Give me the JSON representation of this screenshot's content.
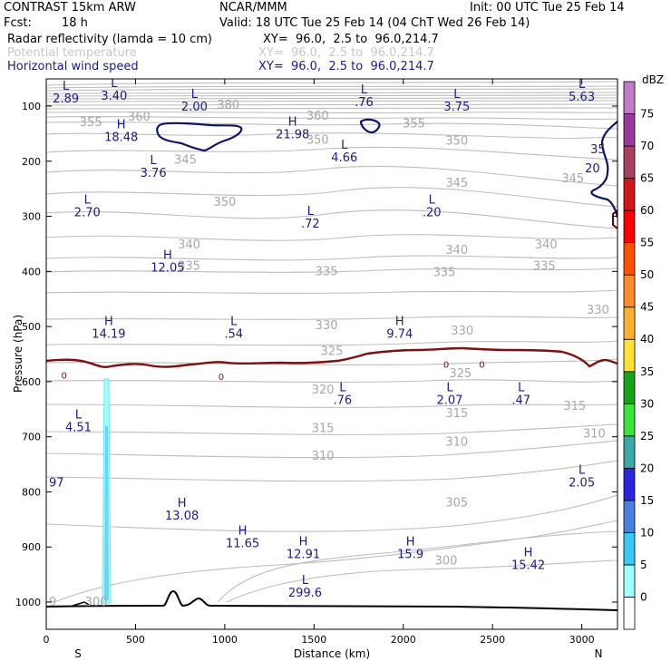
{
  "header": {
    "model": "CONTRAST 15km ARW",
    "org": "NCAR/MMM",
    "init": "Init: 00 UTC Tue 25 Feb 14",
    "fcst_label": "Fcst:",
    "fcst_value": "18 h",
    "valid": "Valid: 18 UTC Tue 25 Feb 14 (04 ChT Wed 26 Feb 14)",
    "fields": [
      {
        "name": "Radar reflectivity (lamda = 10 cm)",
        "xy": "XY=  96.0,  2.5 to  96.0,214.7"
      },
      {
        "name": "Potential temperature",
        "xy": "XY=  96.0,  2.5 to  96.0,214.7"
      },
      {
        "name": "Horizontal wind speed",
        "xy": "XY=  96.0,  2.5 to  96.0,214.7"
      }
    ]
  },
  "chart_data": {
    "type": "contour-cross-section",
    "xlabel": "Distance (km)",
    "ylabel": "Pressure (hPa)",
    "xlim": [
      0,
      3200
    ],
    "ylim": [
      1050,
      70
    ],
    "x_ticks": [
      0,
      500,
      1000,
      1500,
      2000,
      2500,
      3000
    ],
    "y_ticks": [
      100,
      200,
      300,
      400,
      500,
      600,
      700,
      800,
      900,
      1000
    ],
    "x_end_labels": {
      "left": "S",
      "right": "N"
    },
    "theta_labels": [
      {
        "x": 250,
        "p": 130,
        "v": "355"
      },
      {
        "x": 520,
        "p": 120,
        "v": "360"
      },
      {
        "x": 1020,
        "p": 98,
        "v": "380"
      },
      {
        "x": 1520,
        "p": 118,
        "v": "360"
      },
      {
        "x": 2060,
        "p": 132,
        "v": "355"
      },
      {
        "x": 2300,
        "p": 163,
        "v": "350"
      },
      {
        "x": 1520,
        "p": 162,
        "v": "350"
      },
      {
        "x": 780,
        "p": 198,
        "v": "345"
      },
      {
        "x": 2300,
        "p": 240,
        "v": "345"
      },
      {
        "x": 2950,
        "p": 232,
        "v": "345"
      },
      {
        "x": 1000,
        "p": 274,
        "v": "350"
      },
      {
        "x": 800,
        "p": 352,
        "v": "340"
      },
      {
        "x": 2300,
        "p": 362,
        "v": "340"
      },
      {
        "x": 2800,
        "p": 352,
        "v": "340"
      },
      {
        "x": 800,
        "p": 390,
        "v": "335"
      },
      {
        "x": 1570,
        "p": 400,
        "v": "335"
      },
      {
        "x": 2230,
        "p": 402,
        "v": "335"
      },
      {
        "x": 2790,
        "p": 390,
        "v": "335"
      },
      {
        "x": 3090,
        "p": 470,
        "v": "330"
      },
      {
        "x": 1570,
        "p": 498,
        "v": "330"
      },
      {
        "x": 2330,
        "p": 508,
        "v": "330"
      },
      {
        "x": 1600,
        "p": 545,
        "v": "325"
      },
      {
        "x": 2320,
        "p": 585,
        "v": "325"
      },
      {
        "x": 1550,
        "p": 615,
        "v": "320"
      },
      {
        "x": 2960,
        "p": 645,
        "v": "315"
      },
      {
        "x": 2300,
        "p": 658,
        "v": "315"
      },
      {
        "x": 1550,
        "p": 685,
        "v": "315"
      },
      {
        "x": 3070,
        "p": 695,
        "v": "310"
      },
      {
        "x": 2300,
        "p": 710,
        "v": "310"
      },
      {
        "x": 1550,
        "p": 735,
        "v": "310"
      },
      {
        "x": 2300,
        "p": 820,
        "v": "305"
      },
      {
        "x": 2240,
        "p": 925,
        "v": "300"
      },
      {
        "x": 280,
        "p": 1000,
        "v": "300"
      },
      {
        "x": 0,
        "p": 1000,
        "v": "9"
      }
    ],
    "wind_labels": [
      {
        "x": 110,
        "p": 85,
        "type": "L",
        "v": "2.89"
      },
      {
        "x": 380,
        "p": 80,
        "type": "L",
        "v": "3.40"
      },
      {
        "x": 830,
        "p": 100,
        "type": "L",
        "v": "2.00"
      },
      {
        "x": 1780,
        "p": 92,
        "type": "L",
        "v": ".76"
      },
      {
        "x": 2300,
        "p": 100,
        "type": "L",
        "v": "3.75"
      },
      {
        "x": 3000,
        "p": 82,
        "type": "L",
        "v": "5.63"
      },
      {
        "x": 420,
        "p": 155,
        "type": "H",
        "v": "18.48"
      },
      {
        "x": 1380,
        "p": 150,
        "type": "H",
        "v": "21.98"
      },
      {
        "x": 600,
        "p": 220,
        "type": "L",
        "v": "3.76"
      },
      {
        "x": 1670,
        "p": 192,
        "type": "L",
        "v": "4.66"
      },
      {
        "x": 230,
        "p": 292,
        "type": "L",
        "v": "2.70"
      },
      {
        "x": 1480,
        "p": 312,
        "type": "L",
        "v": ".72"
      },
      {
        "x": 2160,
        "p": 292,
        "type": "L",
        "v": ".20"
      },
      {
        "x": 680,
        "p": 392,
        "type": "H",
        "v": "12.05"
      },
      {
        "x": 350,
        "p": 512,
        "type": "H",
        "v": "14.19"
      },
      {
        "x": 1050,
        "p": 512,
        "type": "L",
        "v": ".54"
      },
      {
        "x": 1980,
        "p": 512,
        "type": "H",
        "v": "9.74"
      },
      {
        "x": 1660,
        "p": 632,
        "type": "L",
        "v": ".76"
      },
      {
        "x": 2260,
        "p": 632,
        "type": "L",
        "v": "2.07"
      },
      {
        "x": 2660,
        "p": 632,
        "type": "L",
        "v": ".47"
      },
      {
        "x": 180,
        "p": 682,
        "type": "L",
        "v": "4.51"
      },
      {
        "x": 3000,
        "p": 782,
        "type": "L",
        "v": "2.05"
      },
      {
        "x": 760,
        "p": 842,
        "type": "H",
        "v": "13.08"
      },
      {
        "x": 1100,
        "p": 892,
        "type": "H",
        "v": "11.65"
      },
      {
        "x": 1440,
        "p": 912,
        "type": "H",
        "v": "12.91"
      },
      {
        "x": 2040,
        "p": 912,
        "type": "H",
        "v": "15.9"
      },
      {
        "x": 2700,
        "p": 932,
        "type": "H",
        "v": "15.42"
      },
      {
        "x": 1450,
        "p": 982,
        "type": "L",
        "v": "299.6"
      },
      {
        "x": 3060,
        "p": 212,
        "type": "",
        "v": "20"
      },
      {
        "x": 3090,
        "p": 177,
        "type": "",
        "v": "35"
      },
      {
        "x": 0,
        "p": 782,
        "type": "",
        "v": "97"
      }
    ],
    "zero_contour_labels": [
      {
        "x": 100,
        "p": 588,
        "v": "0"
      },
      {
        "x": 980,
        "p": 590,
        "v": "0"
      },
      {
        "x": 2240,
        "p": 568,
        "v": "0"
      },
      {
        "x": 2440,
        "p": 568,
        "v": "0"
      }
    ],
    "reflectivity_column": {
      "x_km": 330,
      "p_top": 595,
      "p_bottom": 1000,
      "peak_dbz": 15
    },
    "colorbar": {
      "title": "dBZ",
      "labels": [
        "0",
        "5",
        "10",
        "15",
        "20",
        "25",
        "30",
        "35",
        "40",
        "45",
        "50",
        "55",
        "60",
        "65",
        "70",
        "75"
      ],
      "colors": [
        "#ffffff",
        "#9ffefe",
        "#37c8f8",
        "#4a7ee0",
        "#2d24e0",
        "#3ca8a8",
        "#3ae43a",
        "#17a317",
        "#ffe234",
        "#f9b230",
        "#ff8c2c",
        "#ff5000",
        "#ff0000",
        "#d01818",
        "#a84060",
        "#9a3aa0",
        "#c27cc8"
      ]
    }
  }
}
